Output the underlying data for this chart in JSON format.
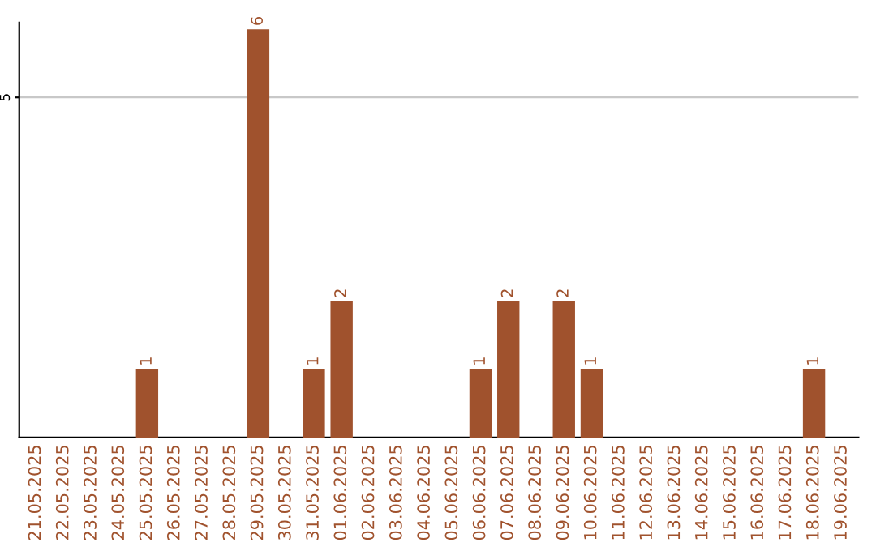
{
  "chart_data": {
    "type": "bar",
    "categories": [
      "21.05.2025",
      "22.05.2025",
      "23.05.2025",
      "24.05.2025",
      "25.05.2025",
      "26.05.2025",
      "27.05.2025",
      "28.05.2025",
      "29.05.2025",
      "30.05.2025",
      "31.05.2025",
      "01.06.2025",
      "02.06.2025",
      "03.06.2025",
      "04.06.2025",
      "05.06.2025",
      "06.06.2025",
      "07.06.2025",
      "08.06.2025",
      "09.06.2025",
      "10.06.2025",
      "11.06.2025",
      "12.06.2025",
      "13.06.2025",
      "14.06.2025",
      "15.06.2025",
      "16.06.2025",
      "17.06.2025",
      "18.06.2025",
      "19.06.2025"
    ],
    "values": [
      0,
      0,
      0,
      0,
      1,
      0,
      0,
      0,
      6,
      0,
      1,
      2,
      0,
      0,
      0,
      0,
      1,
      2,
      0,
      2,
      1,
      0,
      0,
      0,
      0,
      0,
      0,
      0,
      1,
      0
    ],
    "color": "#a0522d",
    "value_labels": [
      null,
      null,
      null,
      null,
      "1",
      null,
      null,
      null,
      "6",
      null,
      "1",
      "2",
      null,
      null,
      null,
      null,
      "1",
      "2",
      null,
      "2",
      "1",
      null,
      null,
      null,
      null,
      null,
      null,
      null,
      "1",
      null
    ],
    "ylim": [
      0,
      6.1
    ],
    "yticks": [
      5
    ],
    "grid": "y"
  }
}
